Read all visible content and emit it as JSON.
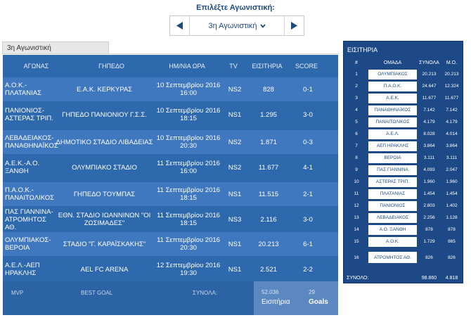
{
  "round_select": {
    "label": "Επιλέξτε Αγωνιστική:",
    "current": "3η Αγωνιστική"
  },
  "tab": {
    "label": "3η Αγωνιστική"
  },
  "games": {
    "headers": {
      "match": "ΑΓΩΝΑΣ",
      "stadium": "ΓΗΠΕΔΟ",
      "date": "ΗΜ/ΝΙΑ ΩΡΑ",
      "tv": "TV",
      "tickets": "ΕΙΣΙΤΗΡΙΑ",
      "score": "SCORE"
    },
    "rows": [
      {
        "match": "Α.Ο.Κ.-ΠΛΑΤΑΝΙΑΣ",
        "stadium": "Ε.Α.Κ. ΚΕΡΚΥΡΑΣ",
        "date": "10 Σεπτεμβρίου 2016",
        "time": "16:00",
        "tv": "NS2",
        "tickets": "828",
        "score": "0-1"
      },
      {
        "match": "ΠΑΝΙΟΝΙΟΣ-ΑΣΤΕΡΑΣ ΤΡΙΠ.",
        "stadium": "ΓΗΠΕΔΟ ΠΑΝΙΟΝΙΟΥ Γ.Σ.Σ.",
        "date": "10 Σεπτεμβρίου 2016",
        "time": "18:15",
        "tv": "NS1",
        "tickets": "1.295",
        "score": "3-0"
      },
      {
        "match": "ΛΕΒΑΔΕΙΑΚΟΣ-ΠΑΝΑΘΗΝΑΪΚΟΣ",
        "stadium": "ΔΗΜΟΤΙΚΟ ΣΤΑΔΙΟ ΛΙΒΑΔΕΙΑΣ",
        "date": "10 Σεπτεμβρίου 2016",
        "time": "20:30",
        "tv": "NS2",
        "tickets": "1.871",
        "score": "0-3"
      },
      {
        "match": "Α.Ε.Κ.-Α.Ο. ΞΑΝΘΗ",
        "stadium": "ΟΛΥΜΠΙΑΚΟ ΣΤΑΔΙΟ",
        "date": "11 Σεπτεμβρίου 2016",
        "time": "16:00",
        "tv": "NS2",
        "tickets": "11.677",
        "score": "4-1"
      },
      {
        "match": "Π.Α.Ο.Κ.-ΠΑΝΑΙΤΩΛΙΚΟΣ",
        "stadium": "ΓΗΠΕΔΟ ΤΟΥΜΠΑΣ",
        "date": "11 Σεπτεμβρίου 2016",
        "time": "18:15",
        "tv": "NS1",
        "tickets": "11.515",
        "score": "2-1"
      },
      {
        "match": "ΠΑΣ ΓΙΑΝΝΙΝΑ-ΑΤΡΟΜΗΤΟΣ ΑΘ.",
        "stadium": "ΕΘΝ. ΣΤΑΔΙΟ ΙΩΑΝΝΙΝΩΝ \"ΟΙ ΖΩΣΙΜΑΔΕΣ\"",
        "date": "11 Σεπτεμβρίου 2016",
        "time": "18:15",
        "tv": "NS3",
        "tickets": "2.116",
        "score": "3-0"
      },
      {
        "match": "ΟΛΥΜΠΙΑΚΟΣ-ΒΕΡΟΙΑ",
        "stadium": "ΣΤΑΔΙΟ \"Γ. ΚΑΡΑΪΣΚΑΚΗΣ\"",
        "date": "11 Σεπτεμβρίου 2016",
        "time": "20:30",
        "tv": "NS1",
        "tickets": "20.213",
        "score": "6-1"
      },
      {
        "match": "Α.Ε.Λ.-ΑΕΠ ΗΡΑΚΛΗΣ",
        "stadium": "AEL FC ARENA",
        "date": "12 Σεπτεμβρίου 2016",
        "time": "19:30",
        "tv": "NS1",
        "tickets": "2.521",
        "score": "2-2"
      }
    ],
    "footer": {
      "mvp": "MVP",
      "best_goal": "BEST GOAL",
      "sum_label": "ΣΥΝΟΛΑ:",
      "tickets_value": "52.036",
      "tickets_label": "Εισιτήρια",
      "goals_value": "29",
      "goals_label": "Goals"
    }
  },
  "attendance": {
    "title": "ΕΙΣΙΤΗΡΙΑ",
    "headers": {
      "n": "#",
      "team": "ΟΜΑΔΑ",
      "sum": "ΣΥΝΟΛΑ",
      "avg": "Μ.Ο."
    },
    "rows": [
      {
        "n": "1",
        "team": "ΟΛΥΜΠΙΑΚΟΣ",
        "sum": "20.213",
        "avg": "20.213"
      },
      {
        "n": "2",
        "team": "Π.Α.Ο.Κ.",
        "sum": "24.647",
        "avg": "12.324"
      },
      {
        "n": "3",
        "team": "Α.Ε.Κ.",
        "sum": "11.677",
        "avg": "11.677"
      },
      {
        "n": "4",
        "team": "ΠΑΝΑΘΗΝΑΪΚΟΣ",
        "sum": "7.142",
        "avg": "7.142"
      },
      {
        "n": "5",
        "team": "ΠΑΝΑΙΤΩΛΙΚΟΣ",
        "sum": "4.179",
        "avg": "4.179"
      },
      {
        "n": "6",
        "team": "Α.Ε.Λ.",
        "sum": "8.028",
        "avg": "4.014"
      },
      {
        "n": "7",
        "team": "ΑΕΠ ΗΡΑΚΛΗΣ",
        "sum": "3.864",
        "avg": "3.864"
      },
      {
        "n": "8",
        "team": "ΒΕΡΟΙΑ",
        "sum": "3.111",
        "avg": "3.111"
      },
      {
        "n": "9",
        "team": "ΠΑΣ ΓΙΑΝΝΙΝΑ",
        "sum": "4.093",
        "avg": "2.047"
      },
      {
        "n": "10",
        "team": "ΑΣΤΕΡΑΣ ΤΡΙΠ.",
        "sum": "1.960",
        "avg": "1.960"
      },
      {
        "n": "11",
        "team": "ΠΛΑΤΑΝΙΑΣ",
        "sum": "1.454",
        "avg": "1.454"
      },
      {
        "n": "12",
        "team": "ΠΑΝΙΟΝΙΟΣ",
        "sum": "2.803",
        "avg": "1.402"
      },
      {
        "n": "13",
        "team": "ΛΕΒΑΔΕΙΑΚΟΣ",
        "sum": "2.256",
        "avg": "1.128"
      },
      {
        "n": "14",
        "team": "Α.Ο. ΞΑΝΘΗ",
        "sum": "878",
        "avg": "878"
      },
      {
        "n": "15",
        "team": "Α.Ο.Κ.",
        "sum": "1.729",
        "avg": "865"
      },
      {
        "n": "16",
        "team": "ΑΤΡΟΜΗΤΟΣ ΑΘ.",
        "sum": "826",
        "avg": "826"
      }
    ],
    "total": {
      "label": "ΣΥΝΟΛΟ:",
      "sum": "98.860",
      "avg": "4.818"
    }
  },
  "colors": {
    "panel_blue": "#2f69ad",
    "row_light": "#4078c0",
    "attendance_bg": "#1d4a86",
    "header_text": "#1e4a82"
  },
  "icons": {
    "prev": "left-arrow-icon",
    "next": "right-arrow-icon",
    "dropdown": "chevron-down-icon"
  }
}
